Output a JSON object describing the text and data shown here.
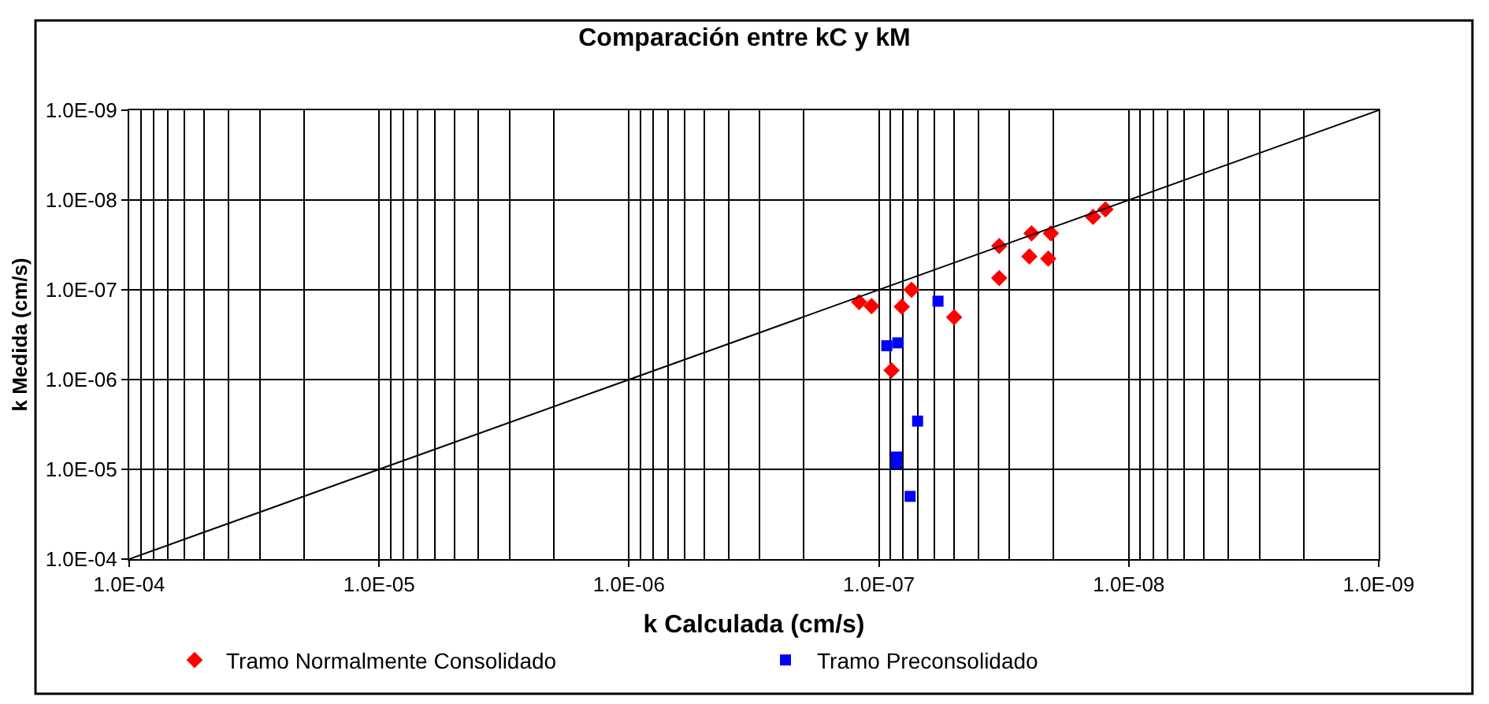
{
  "chart_data": {
    "type": "scatter",
    "title": "Comparación entre kC y kM",
    "xlabel": "k Calculada (cm/s)",
    "ylabel": "k Medida (cm/s)",
    "log": "xy",
    "grid": true,
    "legend": "bottom",
    "xlim": [
      0.0001,
      1e-09
    ],
    "ylim": [
      0.0001,
      1e-09
    ],
    "xticks": [
      {
        "value": 0.0001,
        "label": "1.0E-04"
      },
      {
        "value": 1e-05,
        "label": "1.0E-05"
      },
      {
        "value": 1e-06,
        "label": "1.0E-06"
      },
      {
        "value": 1e-07,
        "label": "1.0E-07"
      },
      {
        "value": 1e-08,
        "label": "1.0E-08"
      },
      {
        "value": 1e-09,
        "label": "1.0E-09"
      }
    ],
    "yticks": [
      {
        "value": 0.0001,
        "label": "1.0E-04"
      },
      {
        "value": 1e-05,
        "label": "1.0E-05"
      },
      {
        "value": 1e-06,
        "label": "1.0E-06"
      },
      {
        "value": 1e-07,
        "label": "1.0E-07"
      },
      {
        "value": 1e-08,
        "label": "1.0E-08"
      },
      {
        "value": 1e-09,
        "label": "1.0E-09"
      }
    ],
    "series": [
      {
        "name": "Tramo Normalmente Consolidado",
        "color": "#ff0000",
        "marker": "diamond",
        "x": [
          1.2e-07,
          1.07e-07,
          8.1e-08,
          7.4e-08,
          8.9e-08,
          5e-08,
          3.3e-08,
          3.3e-08,
          2.45e-08,
          2.05e-08,
          2.5e-08,
          2.1e-08,
          1.39e-08,
          1.24e-08
        ],
        "values": [
          1.37e-07,
          1.52e-07,
          1.54e-07,
          1e-07,
          7.9e-07,
          2.02e-07,
          7.4e-08,
          3.25e-08,
          2.35e-08,
          2.35e-08,
          4.25e-08,
          4.5e-08,
          1.54e-08,
          1.27e-08
        ]
      },
      {
        "name": "Tramo Preconsolidado",
        "color": "#0000ff",
        "marker": "square",
        "x": [
          9.3e-08,
          8.4e-08,
          5.8e-08,
          7e-08,
          8.5e-08,
          8.5e-08,
          7.5e-08
        ],
        "values": [
          4.2e-07,
          3.9e-07,
          1.34e-07,
          2.9e-06,
          7.3e-06,
          8.5e-06,
          2e-05
        ]
      },
      {
        "type": "line",
        "color": "#000000",
        "marker": "none",
        "line_style": "solid",
        "x": [
          0.0001,
          1e-09
        ],
        "values": [
          0.0001,
          1e-09
        ]
      }
    ]
  }
}
